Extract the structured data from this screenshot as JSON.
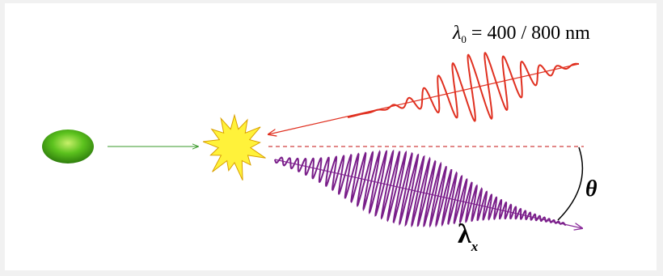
{
  "labels": {
    "incident_wavelength": {
      "symbol": "λ",
      "subscript": "0",
      "equation": "= 400 / 800 nm"
    },
    "emission_angle": "θ",
    "emitted_wavelength": {
      "symbol": "λ",
      "subscript": "x"
    }
  }
}
